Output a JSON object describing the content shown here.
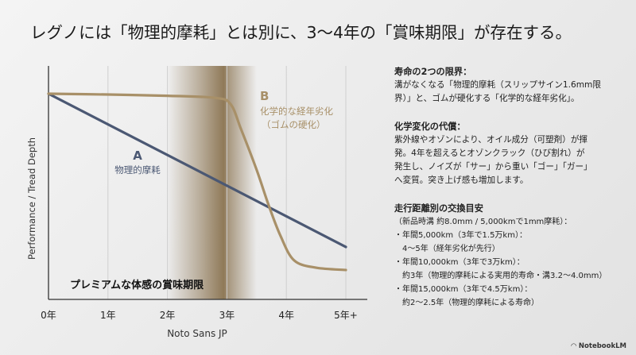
{
  "title": "レグノには「物理的摩耗」とは別に、3〜4年の「賞味期限」が存在する。",
  "chart_data": {
    "type": "line",
    "xlabel": "Noto Sans JP",
    "ylabel": "Performance / Tread Depth",
    "x_ticks": [
      "0年",
      "1年",
      "2年",
      "3年",
      "4年",
      "5年+"
    ],
    "xlim": [
      0,
      5.35
    ],
    "ylim": [
      0,
      113
    ],
    "grid": "vertical",
    "highlight_band": {
      "from": 2.0,
      "to": 3.5,
      "peak": 2.95,
      "label": "プレミアムな体感の賞味期限",
      "color": "#8a7350"
    },
    "series": [
      {
        "name": "A",
        "label": "物理的摩耗",
        "color": "#4b5873",
        "x": [
          0,
          5
        ],
        "y": [
          100,
          25.5
        ]
      },
      {
        "name": "B",
        "label": "化学的な経年劣化",
        "label2": "（ゴムの硬化）",
        "color": "#a89068",
        "x": [
          0,
          1,
          2,
          2.8,
          3.06,
          3.24,
          3.5,
          3.7,
          3.9,
          4.13,
          4.5,
          5
        ],
        "y": [
          100,
          99.6,
          99,
          98,
          95,
          82.6,
          63,
          46,
          31,
          19,
          15.4,
          14.3
        ]
      }
    ]
  },
  "side": {
    "s1_head": "寿命の2つの限界：",
    "s1_lines": [
      "溝がなくなる「物理的摩耗（スリップサイン1.6mm限",
      "界）」と、ゴムが硬化する「化学的な経年劣化」。"
    ],
    "s2_head": "化学変化の代償：",
    "s2_lines": [
      "紫外線やオゾンにより、オイル成分（可塑剤）が揮",
      "発。4年を超えるとオゾンクラック（ひび割れ）が",
      "発生し、ノイズが「サー」から重い「ゴー」「ガー」",
      "へ変質。突き上げ感も増加します。"
    ],
    "s3_head": "走行距離別の交換目安",
    "s3_lines": [
      " （新品時溝 約8.0mm / 5,000kmで1mm摩耗）：",
      "・年間5,000km（3年で1.5万km）：",
      "　4〜5年（経年劣化が先行）",
      "・年間10,000km（3年で3万km）：",
      "　約3年（物理的摩耗による実用的寿命・溝3.2〜4.0mm）",
      "・年間15,000km（3年で4.5万km）：",
      "　約2〜2.5年（物理的摩耗による寿命）"
    ]
  },
  "footer": "NotebookLM"
}
